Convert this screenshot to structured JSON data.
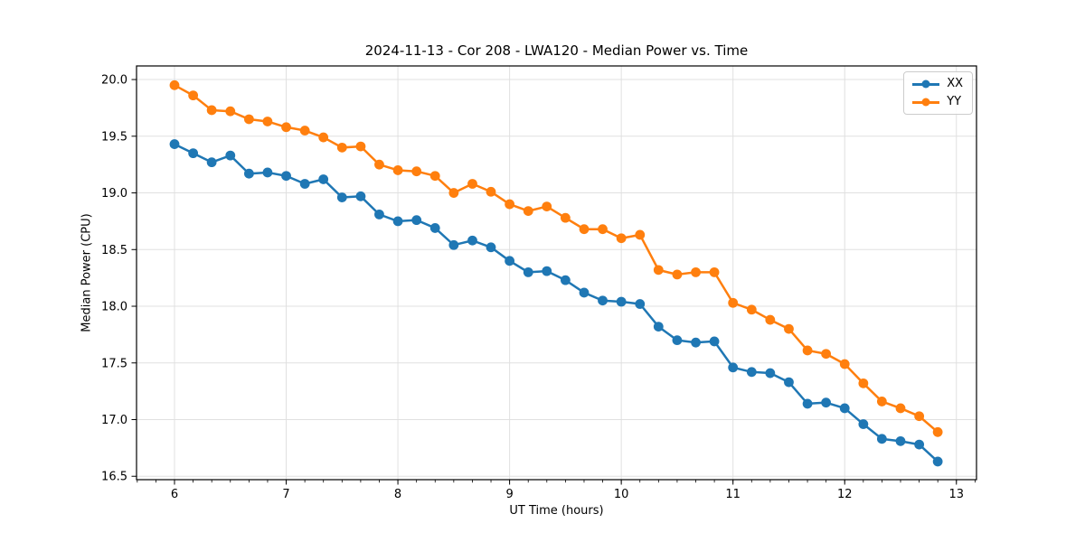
{
  "chart_data": {
    "type": "line",
    "title": "2024-11-13 - Cor 208 - LWA120 - Median Power vs. Time",
    "xlabel": "UT Time (hours)",
    "ylabel": "Median Power (CPU)",
    "xlim": [
      5.66,
      13.18
    ],
    "ylim": [
      16.47,
      20.12
    ],
    "x_ticks": [
      6,
      7,
      8,
      9,
      10,
      11,
      12,
      13
    ],
    "x_tick_labels": [
      "6",
      "7",
      "8",
      "9",
      "10",
      "11",
      "12",
      "13"
    ],
    "x_minor_tick_step": 0.166667,
    "y_ticks": [
      16.5,
      17.0,
      17.5,
      18.0,
      18.5,
      19.0,
      19.5,
      20.0
    ],
    "y_tick_labels": [
      "16.5",
      "17.0",
      "17.5",
      "18.0",
      "18.5",
      "19.0",
      "19.5",
      "20.0"
    ],
    "grid": true,
    "grid_color": "#e0e0e0",
    "legend_position": "upper right",
    "x": [
      6.0,
      6.167,
      6.333,
      6.5,
      6.667,
      6.833,
      7.0,
      7.167,
      7.333,
      7.5,
      7.667,
      7.833,
      8.0,
      8.167,
      8.333,
      8.5,
      8.667,
      8.833,
      9.0,
      9.167,
      9.333,
      9.5,
      9.667,
      9.833,
      10.0,
      10.167,
      10.333,
      10.5,
      10.667,
      10.833,
      11.0,
      11.167,
      11.333,
      11.5,
      11.667,
      11.833,
      12.0,
      12.167,
      12.333,
      12.5,
      12.667,
      12.833
    ],
    "series": [
      {
        "name": "XX",
        "color": "#1f77b4",
        "values": [
          19.43,
          19.35,
          19.27,
          19.33,
          19.17,
          19.18,
          19.15,
          19.08,
          19.12,
          18.96,
          18.97,
          18.81,
          18.75,
          18.76,
          18.69,
          18.54,
          18.58,
          18.52,
          18.4,
          18.3,
          18.31,
          18.23,
          18.12,
          18.05,
          18.04,
          18.02,
          17.82,
          17.7,
          17.68,
          17.69,
          17.46,
          17.42,
          17.41,
          17.33,
          17.14,
          17.15,
          17.1,
          16.96,
          16.83,
          16.81,
          16.78,
          16.63
        ]
      },
      {
        "name": "YY",
        "color": "#ff7f0e",
        "values": [
          19.95,
          19.86,
          19.73,
          19.72,
          19.65,
          19.63,
          19.58,
          19.55,
          19.49,
          19.4,
          19.41,
          19.25,
          19.2,
          19.19,
          19.15,
          19.0,
          19.08,
          19.01,
          18.9,
          18.84,
          18.88,
          18.78,
          18.68,
          18.68,
          18.6,
          18.63,
          18.32,
          18.28,
          18.3,
          18.3,
          18.03,
          17.97,
          17.88,
          17.8,
          17.61,
          17.58,
          17.49,
          17.32,
          17.16,
          17.1,
          17.03,
          16.89
        ]
      }
    ]
  }
}
